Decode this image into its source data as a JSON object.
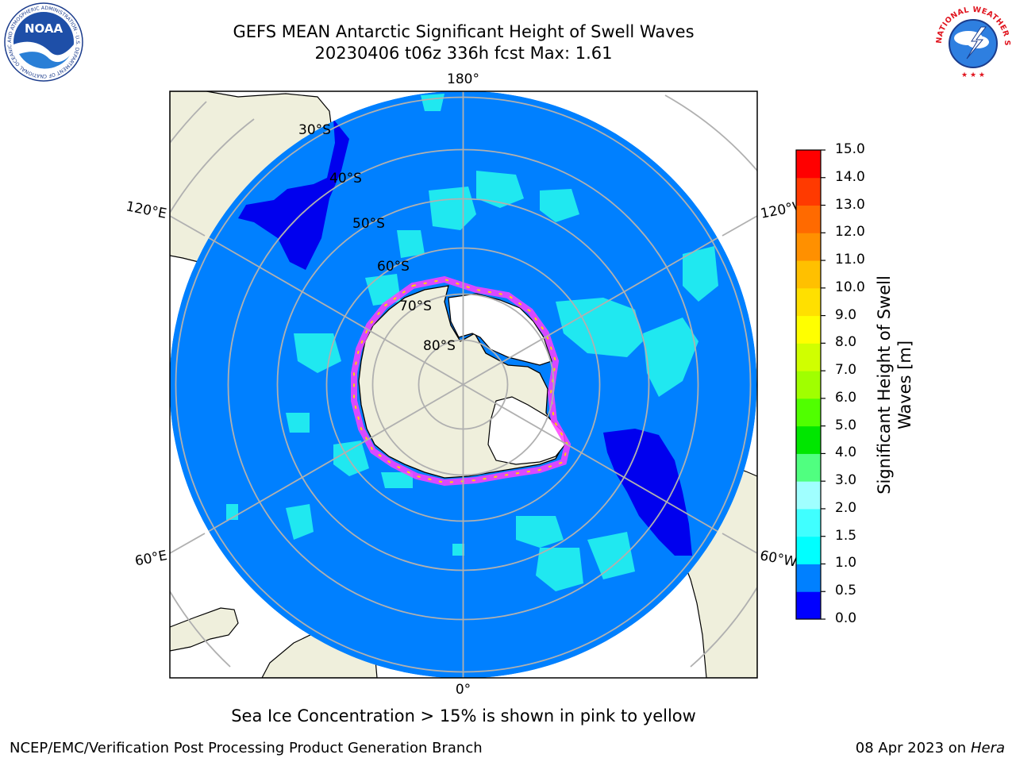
{
  "title": {
    "line1": "GEFS MEAN Antarctic Significant Height of Swell Waves",
    "line2": "20230406 t06z 336h fcst   Max: 1.61"
  },
  "logos": {
    "noaa_text": "NOAA",
    "noaa_ring": "NATIONAL OCEANIC AND ATMOSPHERIC ADMINISTRATION · U.S. DEPARTMENT OF COMMERCE",
    "nws_ring": "NATIONAL WEATHER SERVICE"
  },
  "map": {
    "lon_labels": [
      "180°",
      "0°",
      "120°E",
      "60°E",
      "120°W",
      "60°W"
    ],
    "lat_labels": [
      "30°S",
      "40°S",
      "50°S",
      "60°S",
      "70°S",
      "80°S"
    ],
    "colors": {
      "land": "#efefdc",
      "ocean_dark": "#0000ee",
      "ocean": "#0080ff",
      "swell_cyan": "#20e8f0",
      "ice_pink": "#ff40ff",
      "ice_yellow": "#ffd400",
      "grid": "#b0b0b0"
    }
  },
  "colorbar": {
    "label": "Significant Height of Swell Waves [m]",
    "label_line1": "Significant Height of Swell",
    "label_line2": "Waves [m]",
    "ticks": [
      "0.0",
      "0.5",
      "1.0",
      "1.5",
      "2.0",
      "3.0",
      "4.0",
      "5.0",
      "6.0",
      "7.0",
      "8.0",
      "9.0",
      "10.0",
      "11.0",
      "12.0",
      "13.0",
      "14.0",
      "15.0"
    ],
    "colors": [
      "#0000ff",
      "#0080ff",
      "#00ffff",
      "#40ffff",
      "#a0ffff",
      "#50ff80",
      "#00e600",
      "#50ff00",
      "#a0ff00",
      "#d0ff00",
      "#ffff00",
      "#ffe000",
      "#ffc000",
      "#ff9000",
      "#ff6a00",
      "#ff3a00",
      "#ff0000"
    ]
  },
  "note": "Sea Ice Concentration > 15% is shown in pink to yellow",
  "footer": {
    "left": "NCEP/EMC/Verification Post Processing Product Generation Branch",
    "right_date": "08 Apr 2023 on",
    "right_machine": "Hera"
  }
}
